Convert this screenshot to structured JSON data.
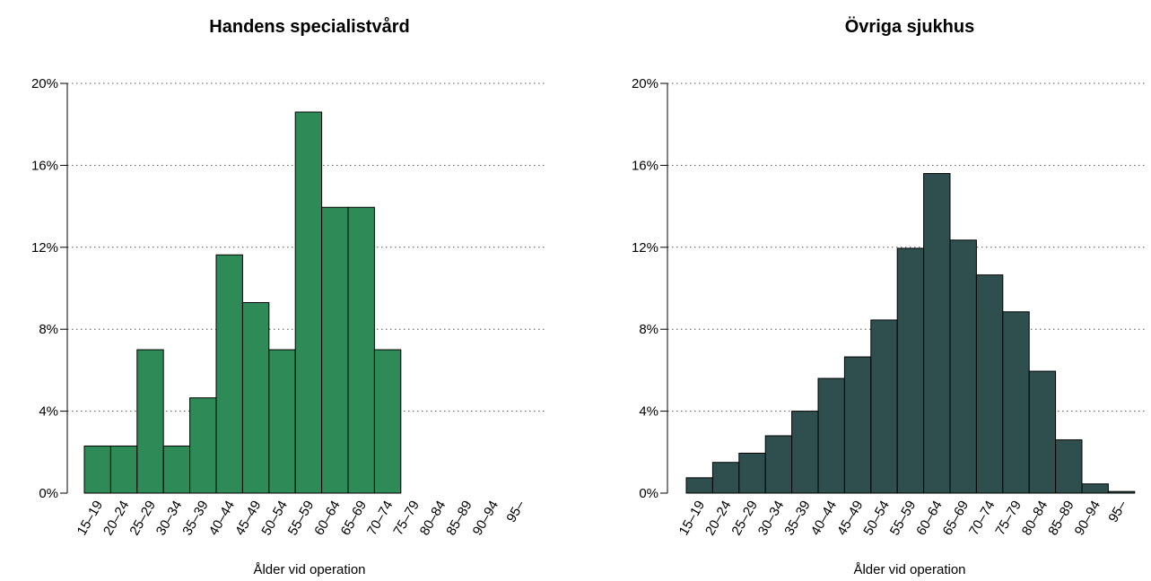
{
  "chart_data": [
    {
      "type": "bar",
      "title": "Handens specialistvård",
      "xlabel": "Ålder vid operation",
      "ylabel": "",
      "ylim": [
        0,
        20
      ],
      "yticks": [
        "0%",
        "4%",
        "8%",
        "12%",
        "16%",
        "20%"
      ],
      "grid": "horizontal dotted",
      "categories": [
        "15–19",
        "20–24",
        "25–29",
        "30–34",
        "35–39",
        "40–44",
        "45–49",
        "50–54",
        "55–59",
        "60–64",
        "65–69",
        "70–74",
        "75–79",
        "80–84",
        "85–89",
        "90–94",
        "95–"
      ],
      "values": [
        2.3,
        2.3,
        7.0,
        2.3,
        4.65,
        11.63,
        9.3,
        7.0,
        18.6,
        13.95,
        13.95,
        7.0,
        0,
        0,
        0,
        0,
        0
      ],
      "color": "#2e8b57"
    },
    {
      "type": "bar",
      "title": "Övriga sjukhus",
      "xlabel": "Ålder vid operation",
      "ylabel": "",
      "ylim": [
        0,
        20
      ],
      "yticks": [
        "0%",
        "4%",
        "8%",
        "12%",
        "16%",
        "20%"
      ],
      "grid": "horizontal dotted",
      "categories": [
        "15–19",
        "20–24",
        "25–29",
        "30–34",
        "35–39",
        "40–44",
        "45–49",
        "50–54",
        "55–59",
        "60–64",
        "65–69",
        "70–74",
        "75–79",
        "80–84",
        "85–89",
        "90–94",
        "95–"
      ],
      "values": [
        0.75,
        1.5,
        1.95,
        2.8,
        4.0,
        5.6,
        6.65,
        8.45,
        11.95,
        15.6,
        12.35,
        10.65,
        8.85,
        5.95,
        2.6,
        0.45,
        0.08
      ],
      "color": "#2f4f4f"
    }
  ]
}
